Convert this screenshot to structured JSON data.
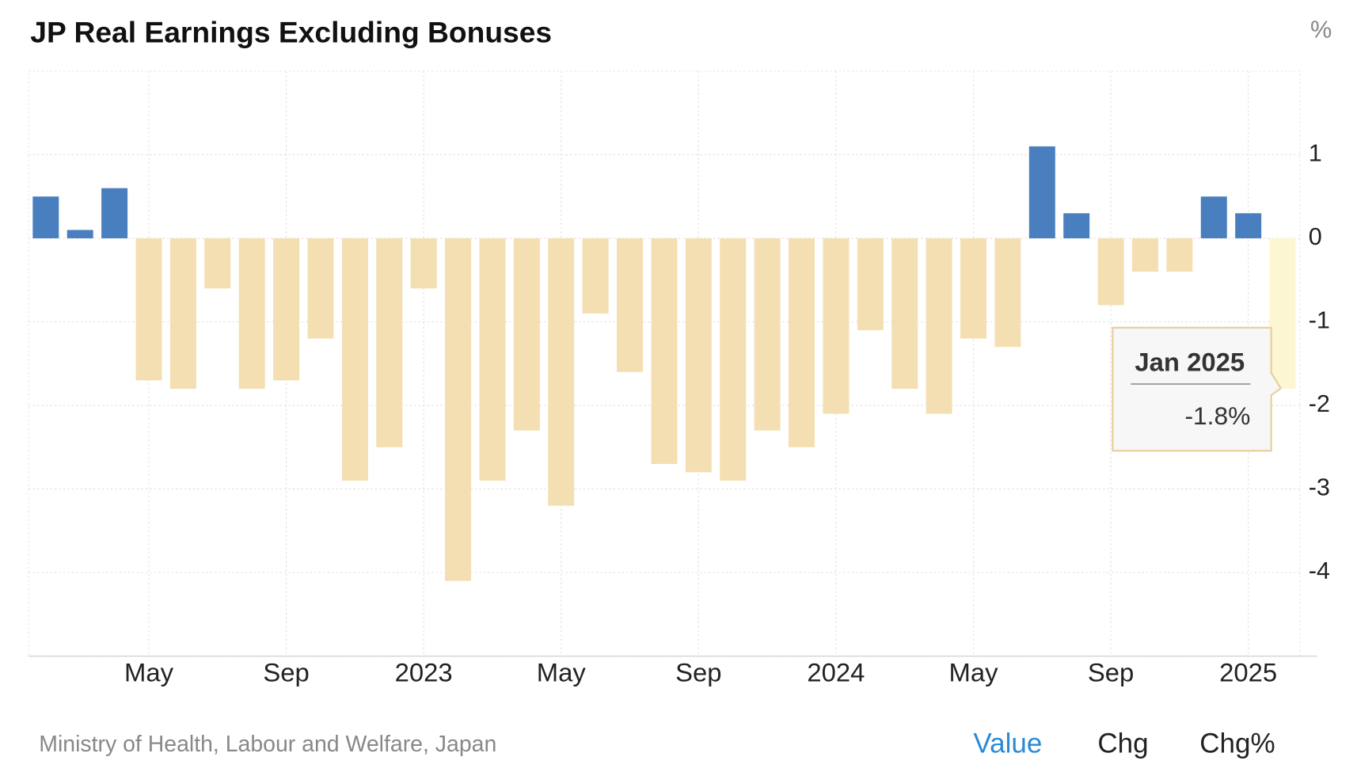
{
  "chart_data": {
    "type": "bar",
    "title": "JP Real Earnings Excluding Bonuses",
    "unit": "%",
    "categories": [
      null,
      null,
      null,
      "May",
      null,
      null,
      null,
      "Sep",
      null,
      null,
      null,
      "2023",
      null,
      null,
      null,
      "May",
      null,
      null,
      null,
      "Sep",
      null,
      null,
      null,
      "2024",
      null,
      null,
      null,
      "May",
      null,
      null,
      null,
      "Sep",
      null,
      null,
      null,
      "2025",
      null
    ],
    "values": [
      0.5,
      0.1,
      0.6,
      -1.7,
      -1.8,
      -0.6,
      -1.8,
      -1.7,
      -1.2,
      -2.9,
      -2.5,
      -0.6,
      -4.1,
      -2.9,
      -2.3,
      -3.2,
      -0.9,
      -1.6,
      -2.7,
      -2.8,
      -2.9,
      -2.3,
      -2.5,
      -2.1,
      -1.1,
      -1.8,
      -2.1,
      -1.2,
      -1.3,
      1.1,
      0.3,
      -0.8,
      -0.4,
      -0.4,
      0.5,
      0.3,
      -1.8
    ],
    "positive_color": "#4a7fbf",
    "negative_color": "#f4dfb2",
    "highlight_color": "#fdf6d2",
    "highlight_index": 36,
    "ylim": [
      -5,
      2
    ],
    "yticks": [
      -4,
      -3,
      -2,
      -1,
      0,
      1
    ],
    "grid": true,
    "tooltip": {
      "title": "Jan 2025",
      "text": "-1.8%"
    },
    "source": "Ministry of Health, Labour and Welfare, Japan",
    "tabs": [
      "Value",
      "Chg",
      "Chg%"
    ]
  }
}
